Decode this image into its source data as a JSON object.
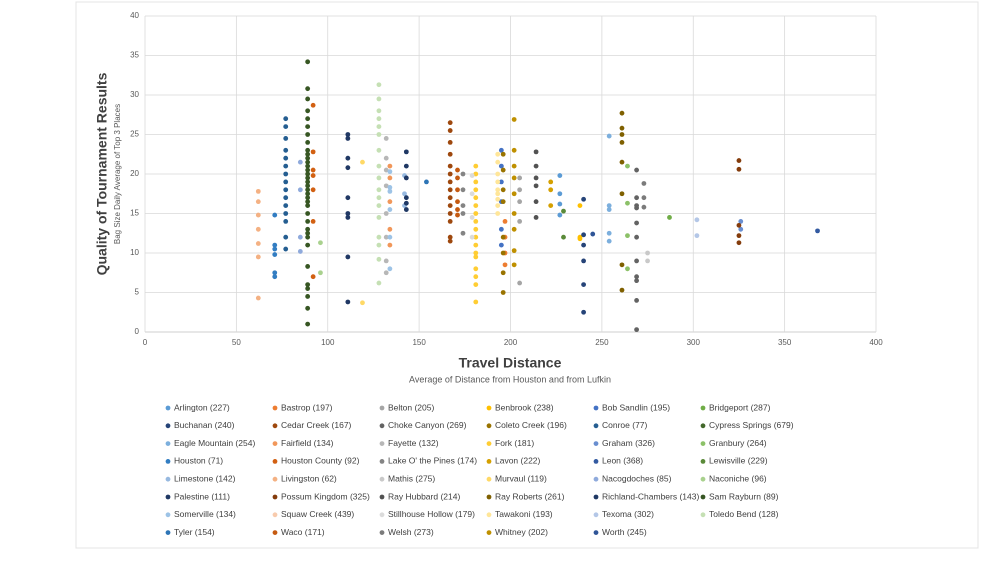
{
  "chart_data": {
    "type": "scatter",
    "ylabel": "Quality of Tournament Results",
    "ysublabel": "Bag Size Daily Average of Top 3 Places",
    "xlabel": "Travel Distance",
    "xsublabel": "Average of Distance from Houston and from Lufkin",
    "xlim": [
      0,
      400
    ],
    "xticks": [
      0,
      50,
      100,
      150,
      200,
      250,
      300,
      350,
      400
    ],
    "ylim": [
      0,
      40
    ],
    "yticks": [
      0,
      5,
      10,
      15,
      20,
      25,
      30,
      35,
      40
    ],
    "grid": true,
    "series": [
      {
        "name": "Arlington (227)",
        "color": "#5b9bd5",
        "x": [
          227,
          227,
          227,
          227
        ],
        "values": [
          19.8,
          17.5,
          16.2,
          14.8
        ]
      },
      {
        "name": "Bastrop (197)",
        "color": "#ed7d31",
        "x": [
          197,
          197,
          197,
          197
        ],
        "values": [
          14,
          12,
          10,
          8.5
        ]
      },
      {
        "name": "Belton (205)",
        "color": "#a5a5a5",
        "x": [
          205,
          205,
          205,
          205,
          205
        ],
        "values": [
          19.5,
          18,
          16.5,
          14,
          6.2
        ]
      },
      {
        "name": "Benbrook (238)",
        "color": "#ffc000",
        "x": [
          238,
          238,
          238
        ],
        "values": [
          16,
          12,
          11.8
        ]
      },
      {
        "name": "Bob Sandlin (195)",
        "color": "#4472c4",
        "x": [
          195,
          195,
          195,
          195,
          195,
          195
        ],
        "values": [
          23,
          21,
          19,
          16.5,
          13,
          11
        ]
      },
      {
        "name": "Bridgeport (287)",
        "color": "#70ad47",
        "x": [
          287
        ],
        "values": [
          14.5
        ]
      },
      {
        "name": "Buchanan (240)",
        "color": "#264478",
        "x": [
          240,
          240,
          240,
          240,
          240,
          240
        ],
        "values": [
          16.8,
          12.3,
          11,
          9,
          6,
          2.5
        ]
      },
      {
        "name": "Cedar Creek (167)",
        "color": "#9e480e",
        "x": [
          167,
          167,
          167,
          167,
          167,
          167,
          167,
          167,
          167,
          167,
          167,
          167,
          167,
          167
        ],
        "values": [
          26.5,
          25.5,
          24,
          22.5,
          21,
          20,
          19,
          18,
          17,
          16,
          15,
          14,
          12,
          11.5
        ]
      },
      {
        "name": "Choke Canyon (269)",
        "color": "#636363",
        "x": [
          269,
          269,
          269,
          269,
          269,
          269,
          269,
          269,
          269,
          269,
          269
        ],
        "values": [
          20.5,
          17,
          16,
          15.7,
          13.8,
          12,
          9,
          7,
          6.5,
          4,
          0.3
        ]
      },
      {
        "name": "Coleto Creek (196)",
        "color": "#997300",
        "x": [
          196,
          196,
          196,
          196,
          196,
          196,
          196,
          196
        ],
        "values": [
          22.5,
          20.5,
          18,
          16.5,
          12,
          10,
          7.5,
          5
        ]
      },
      {
        "name": "Conroe (77)",
        "color": "#255e91",
        "x": [
          77,
          77,
          77,
          77,
          77,
          77,
          77,
          77,
          77,
          77,
          77,
          77,
          77,
          77,
          77
        ],
        "values": [
          27,
          26,
          24.5,
          23,
          22,
          21,
          20,
          19,
          18,
          17,
          16,
          15,
          14,
          12,
          10.5
        ]
      },
      {
        "name": "Cypress Springs (679)",
        "color": "#43682b",
        "x": [],
        "values": []
      },
      {
        "name": "Eagle Mountain (254)",
        "color": "#7cafdd",
        "x": [
          254,
          254,
          254,
          254,
          254
        ],
        "values": [
          24.8,
          16,
          15.5,
          12.5,
          11.5
        ]
      },
      {
        "name": "Fairfield (134)",
        "color": "#f1975a",
        "x": [
          134,
          134,
          134,
          134,
          134
        ],
        "values": [
          21,
          19.5,
          16.5,
          13,
          11
        ]
      },
      {
        "name": "Fayette (132)",
        "color": "#b7b7b7",
        "x": [
          132,
          132,
          132,
          132,
          132,
          132,
          132,
          132
        ],
        "values": [
          24.5,
          22,
          20.5,
          18.5,
          15,
          12,
          9,
          7.5
        ]
      },
      {
        "name": "Fork (181)",
        "color": "#ffcd33",
        "x": [
          181,
          181,
          181,
          181,
          181,
          181,
          181,
          181,
          181,
          181,
          181,
          181,
          181,
          181,
          181,
          181,
          181
        ],
        "values": [
          21,
          20,
          19,
          18,
          17,
          16,
          15,
          14,
          13,
          12,
          11,
          10,
          9.5,
          8,
          7,
          6,
          3.8
        ]
      },
      {
        "name": "Graham (326)",
        "color": "#698ed0",
        "x": [
          326,
          326
        ],
        "values": [
          14,
          13
        ]
      },
      {
        "name": "Granbury (264)",
        "color": "#8cc168",
        "x": [
          264,
          264,
          264,
          264
        ],
        "values": [
          21,
          16.3,
          12.2,
          8
        ]
      },
      {
        "name": "Houston (71)",
        "color": "#327dc2",
        "x": [
          71,
          71,
          71,
          71,
          71,
          71
        ],
        "values": [
          14.8,
          11,
          10.5,
          9.8,
          7.5,
          7
        ]
      },
      {
        "name": "Houston County (92)",
        "color": "#d26012",
        "x": [
          92,
          92,
          92,
          92,
          92,
          92,
          92
        ],
        "values": [
          28.7,
          22.8,
          20.5,
          19.8,
          18,
          14,
          7
        ]
      },
      {
        "name": "Lake O' the Pines (174)",
        "color": "#848484",
        "x": [
          174,
          174,
          174,
          174,
          174
        ],
        "values": [
          20,
          18,
          16,
          15,
          12.5
        ]
      },
      {
        "name": "Lavon (222)",
        "color": "#d5a000",
        "x": [
          222,
          222,
          222
        ],
        "values": [
          19,
          18,
          16
        ]
      },
      {
        "name": "Leon (368)",
        "color": "#335aa1",
        "x": [
          368
        ],
        "values": [
          12.8
        ]
      },
      {
        "name": "Lewisville (229)",
        "color": "#5a8a39",
        "x": [
          229,
          229
        ],
        "values": [
          15.3,
          12
        ]
      },
      {
        "name": "Limestone (142)",
        "color": "#97b9e0",
        "x": [
          142,
          142,
          142
        ],
        "values": [
          19.8,
          17.5,
          16
        ]
      },
      {
        "name": "Livingston (62)",
        "color": "#f4b183",
        "x": [
          62,
          62,
          62,
          62,
          62,
          62,
          62
        ],
        "values": [
          17.8,
          16.5,
          14.8,
          13,
          11.2,
          9.5,
          4.3
        ]
      },
      {
        "name": "Mathis (275)",
        "color": "#c9c9c9",
        "x": [
          275,
          275
        ],
        "values": [
          10,
          9
        ]
      },
      {
        "name": "Murvaul (119)",
        "color": "#ffd966",
        "x": [
          119,
          119
        ],
        "values": [
          21.5,
          3.7
        ]
      },
      {
        "name": "Nacogdoches (85)",
        "color": "#8faadc",
        "x": [
          85,
          85,
          85,
          85
        ],
        "values": [
          21.5,
          18,
          12,
          10.2
        ]
      },
      {
        "name": "Naconiche (96)",
        "color": "#a9d18e",
        "x": [
          96,
          96
        ],
        "values": [
          11.3,
          7.5
        ]
      },
      {
        "name": "Palestine (111)",
        "color": "#203864",
        "x": [
          111,
          111,
          111,
          111,
          111,
          111,
          111,
          111,
          111
        ],
        "values": [
          25,
          24.5,
          22,
          20.8,
          17,
          15,
          14.5,
          9.5,
          3.8
        ]
      },
      {
        "name": "Possum Kingdom (325)",
        "color": "#843c0c",
        "x": [
          325,
          325,
          325,
          325,
          325
        ],
        "values": [
          21.7,
          20.6,
          13.5,
          12.2,
          11.3
        ]
      },
      {
        "name": "Ray Hubbard (214)",
        "color": "#525252",
        "x": [
          214,
          214,
          214,
          214,
          214,
          214
        ],
        "values": [
          22.8,
          21,
          19.5,
          18.5,
          16.5,
          14.5
        ]
      },
      {
        "name": "Ray Roberts (261)",
        "color": "#7f6000",
        "x": [
          261,
          261,
          261,
          261,
          261,
          261,
          261,
          261
        ],
        "values": [
          27.7,
          25.8,
          25,
          24,
          21.5,
          17.5,
          8.5,
          5.3
        ]
      },
      {
        "name": "Richland-Chambers (143)",
        "color": "#1f3864",
        "x": [
          143,
          143,
          143,
          143,
          143,
          143
        ],
        "values": [
          22.8,
          21,
          19.5,
          17,
          16.3,
          15.5
        ]
      },
      {
        "name": "Sam Rayburn (89)",
        "color": "#375623",
        "x": [
          89,
          89,
          89,
          89,
          89,
          89,
          89,
          89,
          89,
          89,
          89,
          89,
          89,
          89,
          89,
          89,
          89,
          89,
          89,
          89,
          89,
          89,
          89,
          89,
          89,
          89,
          89,
          89,
          89,
          89,
          89,
          89,
          89,
          89,
          89
        ],
        "values": [
          34.2,
          30.8,
          29.5,
          28,
          27,
          26,
          25,
          24,
          23,
          22.5,
          22,
          21.5,
          21,
          20.5,
          20,
          19.5,
          19,
          18.5,
          18,
          17.5,
          17,
          16.5,
          16,
          15,
          14,
          13,
          12.5,
          12,
          11,
          8.3,
          6,
          5.5,
          4.5,
          3,
          1
        ]
      },
      {
        "name": "Somerville (134)",
        "color": "#9dc3e6",
        "x": [
          134,
          134,
          134,
          134,
          134,
          134
        ],
        "values": [
          20.3,
          18.3,
          17.8,
          15.5,
          12,
          8
        ]
      },
      {
        "name": "Squaw Creek (439)",
        "color": "#f8cbad",
        "x": [],
        "values": []
      },
      {
        "name": "Stillhouse Hollow (179)",
        "color": "#dbdbdb",
        "x": [
          179,
          179,
          179,
          179
        ],
        "values": [
          19.8,
          17.5,
          14.5,
          12
        ]
      },
      {
        "name": "Tawakoni (193)",
        "color": "#ffe699",
        "x": [
          193,
          193,
          193,
          193,
          193,
          193,
          193,
          193,
          193
        ],
        "values": [
          22.5,
          21.5,
          20,
          19,
          18,
          17.5,
          16.8,
          16,
          15
        ]
      },
      {
        "name": "Texoma (302)",
        "color": "#b4c7e7",
        "x": [
          302,
          302
        ],
        "values": [
          14.2,
          12.2
        ]
      },
      {
        "name": "Toledo Bend (128)",
        "color": "#c5e0b4",
        "x": [
          128,
          128,
          128,
          128,
          128,
          128,
          128,
          128,
          128,
          128,
          128,
          128,
          128,
          128,
          128,
          128,
          128
        ],
        "values": [
          31.3,
          29.5,
          28,
          27,
          26,
          25,
          23,
          21,
          19.5,
          18,
          17,
          16,
          14.5,
          12,
          11,
          9.2,
          6.2
        ]
      },
      {
        "name": "Tyler (154)",
        "color": "#2e75b6",
        "x": [
          154
        ],
        "values": [
          19
        ]
      },
      {
        "name": "Waco (171)",
        "color": "#c55a11",
        "x": [
          171,
          171,
          171,
          171,
          171,
          171
        ],
        "values": [
          20.5,
          19.5,
          18,
          16.5,
          15.5,
          14.8
        ]
      },
      {
        "name": "Welsh (273)",
        "color": "#7b7b7b",
        "x": [
          273,
          273,
          273
        ],
        "values": [
          18.8,
          17,
          15.8
        ]
      },
      {
        "name": "Whitney (202)",
        "color": "#bf9000",
        "x": [
          202,
          202,
          202,
          202,
          202,
          202,
          202,
          202,
          202
        ],
        "values": [
          26.9,
          23,
          21,
          19.5,
          17.5,
          15,
          13,
          10.3,
          8.5
        ]
      },
      {
        "name": "Worth (245)",
        "color": "#2f5597",
        "x": [
          245
        ],
        "values": [
          12.4
        ]
      }
    ]
  }
}
